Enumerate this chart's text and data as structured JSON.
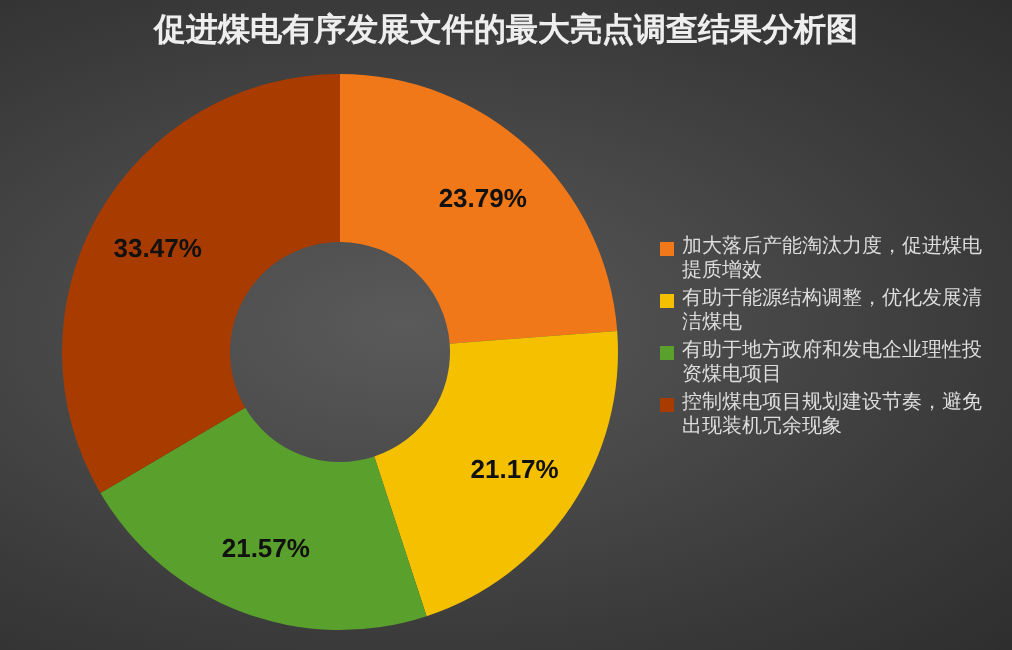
{
  "chart_data": {
    "type": "donut",
    "title": "促进煤电有序发展文件的最大亮点调查结果分析图",
    "categories": [
      "加大落后产能淘汰力度，促进煤电提质增效",
      "有助于能源结构调整，优化发展清洁煤电",
      "有助于地方政府和发电企业理性投资煤电项目",
      "控制煤电项目规划建设节奏，避免出现装机冗余现象"
    ],
    "values": [
      23.79,
      21.17,
      21.57,
      33.47
    ],
    "value_labels": [
      "23.79%",
      "21.17%",
      "21.57%",
      "33.47%"
    ],
    "colors": [
      "#f07818",
      "#f5c000",
      "#5aa02c",
      "#a83c00"
    ],
    "legend": "right"
  }
}
